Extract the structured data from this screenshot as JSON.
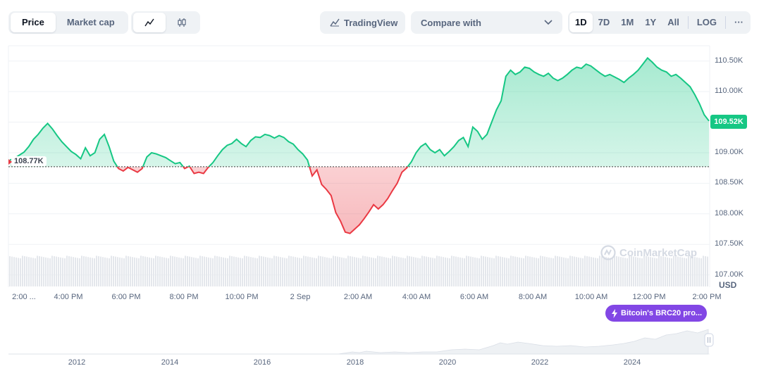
{
  "toolbar": {
    "view_tabs": [
      {
        "label": "Price",
        "active": true
      },
      {
        "label": "Market cap",
        "active": false
      }
    ],
    "chart_types": [
      {
        "icon": "line-chart-icon",
        "active": true
      },
      {
        "icon": "candlestick-icon",
        "active": false
      }
    ],
    "tradingview_label": "TradingView",
    "compare_label": "Compare with",
    "ranges": [
      {
        "label": "1D",
        "active": true
      },
      {
        "label": "7D",
        "active": false
      },
      {
        "label": "1M",
        "active": false
      },
      {
        "label": "1Y",
        "active": false
      },
      {
        "label": "All",
        "active": false
      }
    ],
    "log_label": "LOG",
    "more_label": "···"
  },
  "chart": {
    "current_price_label": "109.52K",
    "reference_price_label": "108.77K",
    "currency_label": "USD",
    "watermark": "CoinMarketCap",
    "news_badge": "Bitcoin's BRC20 pro...",
    "colors": {
      "up": "#16c784",
      "down": "#ea3943"
    }
  },
  "chart_data": {
    "type": "area",
    "title": "",
    "xlabel": "",
    "ylabel": "USD",
    "y_ticks": [
      "110.50K",
      "110.00K",
      "109.50K",
      "109.00K",
      "108.50K",
      "108.00K",
      "107.50K",
      "107.00K"
    ],
    "x_ticks": [
      "2:00 ...",
      "4:00 PM",
      "6:00 PM",
      "8:00 PM",
      "10:00 PM",
      "2 Sep",
      "2:00 AM",
      "4:00 AM",
      "6:00 AM",
      "8:00 AM",
      "10:00 AM",
      "12:00 PM",
      "2:00 PM"
    ],
    "ylim": [
      106.8,
      110.75
    ],
    "baseline": 108.77,
    "series": [
      {
        "values": [
          108.88,
          108.91,
          108.96,
          109.01,
          109.1,
          109.22,
          109.3,
          109.4,
          109.48,
          109.39,
          109.28,
          109.18,
          109.1,
          109.02,
          108.97,
          108.9,
          109.08,
          108.95,
          109.0,
          109.22,
          109.3,
          109.1,
          108.86,
          108.74,
          108.7,
          108.76,
          108.72,
          108.68,
          108.74,
          108.93,
          109.0,
          108.98,
          108.95,
          108.92,
          108.87,
          108.82,
          108.84,
          108.74,
          108.78,
          108.66,
          108.68,
          108.66,
          108.76,
          108.84,
          108.95,
          109.05,
          109.12,
          109.15,
          109.22,
          109.15,
          109.1,
          109.2,
          109.26,
          109.25,
          109.3,
          109.28,
          109.24,
          109.28,
          109.25,
          109.18,
          109.14,
          109.05,
          108.98,
          108.88,
          108.62,
          108.72,
          108.48,
          108.4,
          108.3,
          108.02,
          107.88,
          107.7,
          107.68,
          107.75,
          107.82,
          107.92,
          108.03,
          108.15,
          108.08,
          108.15,
          108.25,
          108.38,
          108.5,
          108.68,
          108.75,
          108.85,
          109.0,
          109.1,
          109.15,
          109.05,
          109.0,
          109.05,
          108.95,
          109.02,
          109.1,
          109.2,
          109.25,
          109.1,
          109.42,
          109.35,
          109.22,
          109.3,
          109.5,
          109.7,
          109.85,
          110.25,
          110.35,
          110.28,
          110.32,
          110.4,
          110.38,
          110.32,
          110.28,
          110.25,
          110.3,
          110.22,
          110.18,
          110.22,
          110.28,
          110.35,
          110.4,
          110.38,
          110.45,
          110.42,
          110.36,
          110.3,
          110.25,
          110.28,
          110.24,
          110.2,
          110.15,
          110.22,
          110.28,
          110.35,
          110.45,
          110.55,
          110.48,
          110.4,
          110.35,
          110.32,
          110.25,
          110.28,
          110.22,
          110.15,
          110.08,
          109.95,
          109.8,
          109.62,
          109.52
        ]
      }
    ]
  },
  "navigator": {
    "x_ticks": [
      "2012",
      "2014",
      "2016",
      "2018",
      "2020",
      "2022",
      "2024"
    ]
  }
}
